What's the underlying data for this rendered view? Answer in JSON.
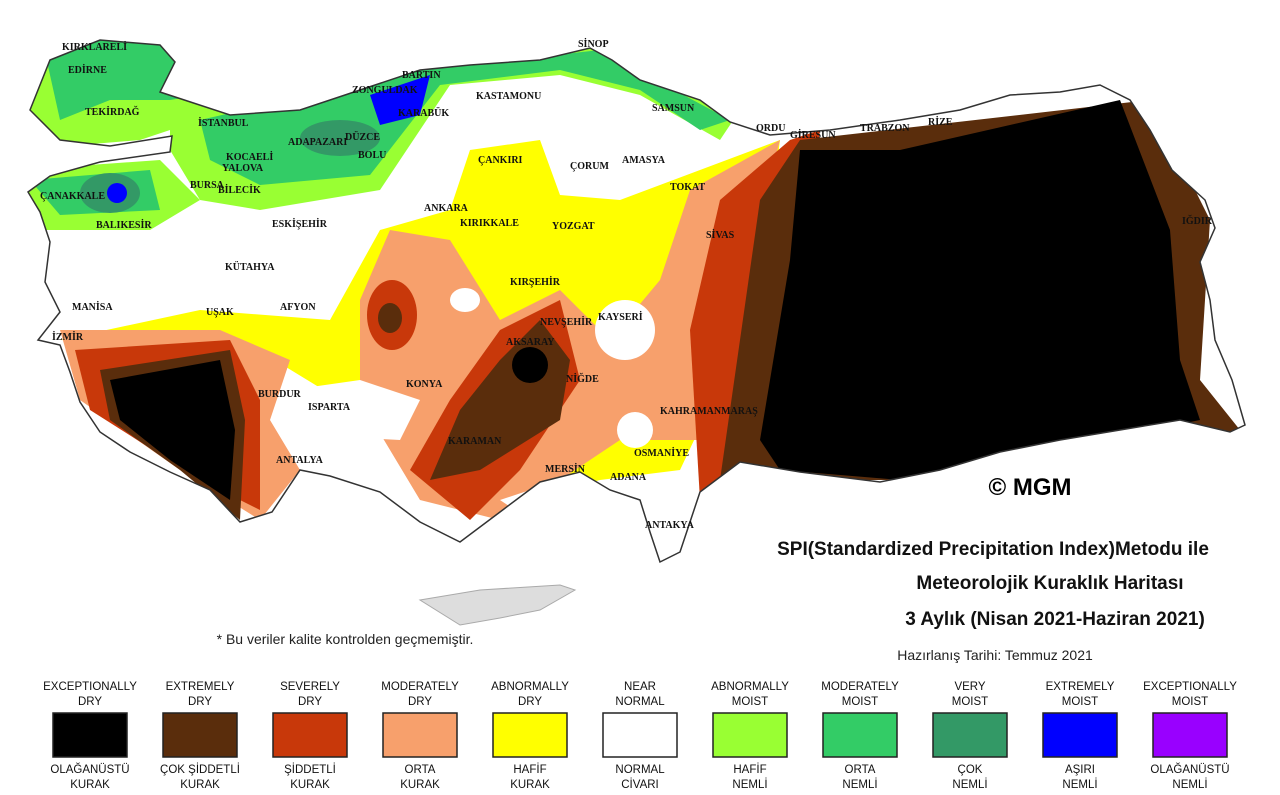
{
  "title": {
    "line1": "SPI(Standardized Precipitation Index)Metodu ile",
    "line2": "Meteorolojik Kuraklık Haritası",
    "line3": "3 Aylık (Nisan 2021-Haziran 2021)",
    "date": "Hazırlanış Tarihi: Temmuz 2021"
  },
  "note": "* Bu veriler kalite kontrolden geçmemiştir.",
  "copyright": "© MGM",
  "cities": [
    "KIRKLARELİ",
    "EDİRNE",
    "TEKİRDAĞ",
    "İSTANBUL",
    "ZONGULDAK",
    "BARTIN",
    "KARABÜK",
    "KASTAMONU",
    "SİNOP",
    "SAMSUN",
    "DÜZCE",
    "ADAPAZARI",
    "BOLU",
    "KOCAELİ",
    "YALOVA",
    "BURSA",
    "BİLECİK",
    "ÇANAKKALE",
    "BALIKESİR",
    "ESKİŞEHİR",
    "ÇANKIRI",
    "ÇORUM",
    "AMASYA",
    "TOKAT",
    "ORDU",
    "GİRESUN",
    "TRABZON",
    "RİZE",
    "IĞDIR",
    "ANKARA",
    "KIRIKKALE",
    "YOZGAT",
    "SİVAS",
    "KÜTAHYA",
    "MANİSA",
    "UŞAK",
    "AFYON",
    "KIRŞEHİR",
    "KAYSERİ",
    "NEVŞEHİR",
    "AKSARAY",
    "NİĞDE",
    "İZMİR",
    "KONYA",
    "BURDUR",
    "ISPARTA",
    "KAHRAMANMARAŞ",
    "KARAMAN",
    "ANTALYA",
    "MERSİN",
    "OSMANİYE",
    "ADANA",
    "ANTAKYA"
  ],
  "legend": [
    {
      "en": [
        "EXCEPTIONALLY",
        "DRY"
      ],
      "color": "#000000",
      "tr": [
        "OLAĞANÜSTÜ",
        "KURAK"
      ]
    },
    {
      "en": [
        "EXTREMELY",
        "DRY"
      ],
      "color": "#5a2d0c",
      "tr": [
        "ÇOK ŞİDDETLİ",
        "KURAK"
      ]
    },
    {
      "en": [
        "SEVERELY",
        "DRY"
      ],
      "color": "#c8380a",
      "tr": [
        "ŞİDDETLİ",
        "KURAK"
      ]
    },
    {
      "en": [
        "MODERATELY",
        "DRY"
      ],
      "color": "#f7a06c",
      "tr": [
        "ORTA",
        "KURAK"
      ]
    },
    {
      "en": [
        "ABNORMALLY",
        "DRY"
      ],
      "color": "#ffff00",
      "tr": [
        "HAFİF",
        "KURAK"
      ]
    },
    {
      "en": [
        "NEAR",
        "NORMAL"
      ],
      "color": "#ffffff",
      "tr": [
        "NORMAL",
        "CİVARI"
      ]
    },
    {
      "en": [
        "ABNORMALLY",
        "MOIST"
      ],
      "color": "#99ff33",
      "tr": [
        "HAFİF",
        "NEMLİ"
      ]
    },
    {
      "en": [
        "MODERATELY",
        "MOIST"
      ],
      "color": "#33cc66",
      "tr": [
        "ORTA",
        "NEMLİ"
      ]
    },
    {
      "en": [
        "VERY",
        "MOIST"
      ],
      "color": "#339966",
      "tr": [
        "ÇOK",
        "NEMLİ"
      ]
    },
    {
      "en": [
        "EXTREMELY",
        "MOIST"
      ],
      "color": "#0000ff",
      "tr": [
        "AŞIRI",
        "NEMLİ"
      ]
    },
    {
      "en": [
        "EXCEPTIONALLY",
        "MOIST"
      ],
      "color": "#9900ff",
      "tr": [
        "OLAĞANÜSTÜ",
        "NEMLİ"
      ]
    }
  ]
}
